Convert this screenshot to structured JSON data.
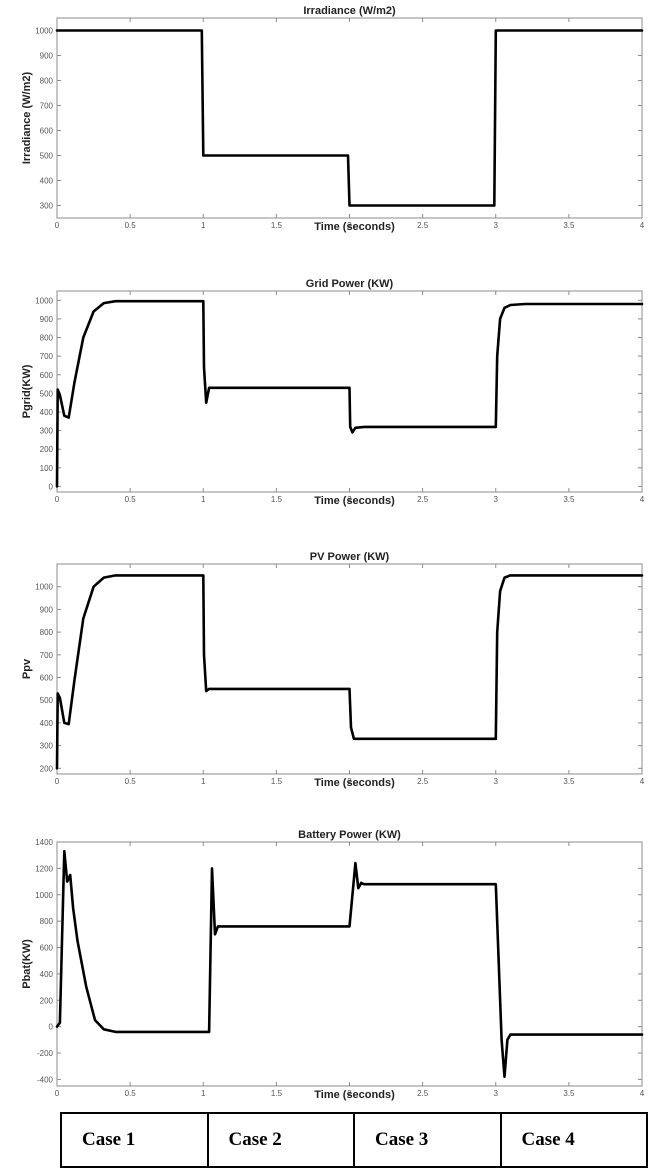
{
  "colors": {
    "line": "#000000",
    "axes": "#8c8c8c",
    "tick_text": "#555555",
    "background": "#ffffff"
  },
  "chart_data": [
    {
      "type": "line",
      "title": "Irradiance (W/m2)",
      "xlabel": "Time (seconds)",
      "ylabel": "Irradiance (W/m2)",
      "xlim": [
        0,
        4
      ],
      "ylim": [
        250,
        1050
      ],
      "xticks": [
        "0",
        "0.5",
        "1",
        "1.5",
        "2",
        "2.5",
        "3",
        "3.5",
        "4"
      ],
      "yticks": [
        "300",
        "400",
        "500",
        "600",
        "700",
        "800",
        "900",
        "1000"
      ],
      "grid": false,
      "series": [
        {
          "x": [
            0,
            0.99,
            1.0,
            1.99,
            2.0,
            2.99,
            3.0,
            4.0
          ],
          "y": [
            1000,
            1000,
            500,
            500,
            300,
            300,
            1000,
            1000
          ]
        }
      ]
    },
    {
      "type": "line",
      "title": "Grid Power (KW)",
      "xlabel": "Time (seconds)",
      "ylabel": "Pgrid(KW)",
      "xlim": [
        0,
        4
      ],
      "ylim": [
        -30,
        1050
      ],
      "xticks": [
        "0",
        "0.5",
        "1",
        "1.5",
        "2",
        "2.5",
        "3",
        "3.5",
        "4"
      ],
      "yticks": [
        "0",
        "100",
        "200",
        "300",
        "400",
        "500",
        "600",
        "700",
        "800",
        "900",
        "1000"
      ],
      "grid": false,
      "series": [
        {
          "x": [
            0,
            0.005,
            0.02,
            0.05,
            0.08,
            0.12,
            0.18,
            0.25,
            0.32,
            0.4,
            0.6,
            1.0,
            1.005,
            1.02,
            1.04,
            1.1,
            2.0,
            2.005,
            2.02,
            2.04,
            2.1,
            3.0,
            3.01,
            3.03,
            3.06,
            3.1,
            3.2,
            4.0
          ],
          "y": [
            0,
            520,
            490,
            380,
            370,
            560,
            800,
            940,
            985,
            995,
            995,
            995,
            640,
            450,
            530,
            530,
            530,
            320,
            290,
            315,
            320,
            320,
            700,
            900,
            960,
            975,
            980,
            980
          ]
        }
      ]
    },
    {
      "type": "line",
      "title": "PV Power (KW)",
      "xlabel": "Time (seconds)",
      "ylabel": "Ppv",
      "xlim": [
        0,
        4
      ],
      "ylim": [
        175,
        1100
      ],
      "xticks": [
        "0",
        "0.5",
        "1",
        "1.5",
        "2",
        "2.5",
        "3",
        "3.5",
        "4"
      ],
      "yticks": [
        "200",
        "300",
        "400",
        "500",
        "600",
        "700",
        "800",
        "900",
        "1000"
      ],
      "grid": false,
      "series": [
        {
          "x": [
            0,
            0.005,
            0.02,
            0.05,
            0.08,
            0.12,
            0.18,
            0.25,
            0.32,
            0.4,
            0.6,
            1.0,
            1.005,
            1.02,
            1.04,
            1.1,
            2.0,
            2.01,
            2.03,
            2.1,
            3.0,
            3.01,
            3.03,
            3.06,
            3.1,
            3.2,
            4.0
          ],
          "y": [
            200,
            530,
            510,
            400,
            395,
            590,
            860,
            1000,
            1040,
            1050,
            1050,
            1050,
            700,
            540,
            550,
            550,
            550,
            380,
            330,
            330,
            330,
            800,
            980,
            1040,
            1050,
            1050,
            1050
          ]
        }
      ]
    },
    {
      "type": "line",
      "title": "Battery Power (KW)",
      "xlabel": "Time (seconds)",
      "ylabel": "Pbat(KW)",
      "xlim": [
        0,
        4
      ],
      "ylim": [
        -450,
        1400
      ],
      "xticks": [
        "0",
        "0.5",
        "1",
        "1.5",
        "2",
        "2.5",
        "3",
        "3.5",
        "4"
      ],
      "yticks": [
        "-400",
        "-200",
        "0",
        "200",
        "400",
        "600",
        "800",
        "1000",
        "1200",
        "1400"
      ],
      "grid": false,
      "series": [
        {
          "x": [
            0,
            0.02,
            0.05,
            0.07,
            0.09,
            0.11,
            0.14,
            0.2,
            0.26,
            0.32,
            0.4,
            0.6,
            1.0,
            1.04,
            1.06,
            1.08,
            1.1,
            1.15,
            1.5,
            2.0,
            2.04,
            2.06,
            2.08,
            2.1,
            2.15,
            2.5,
            3.0,
            3.04,
            3.06,
            3.08,
            3.1,
            3.2,
            4.0
          ],
          "y": [
            0,
            30,
            1330,
            1100,
            1150,
            900,
            650,
            300,
            50,
            -20,
            -40,
            -40,
            -40,
            -40,
            1200,
            700,
            760,
            760,
            760,
            760,
            1240,
            1050,
            1090,
            1080,
            1080,
            1080,
            1080,
            -100,
            -380,
            -100,
            -60,
            -60,
            -60
          ]
        }
      ]
    }
  ],
  "cases": [
    "Case 1",
    "Case 2",
    "Case 3",
    "Case 4"
  ]
}
